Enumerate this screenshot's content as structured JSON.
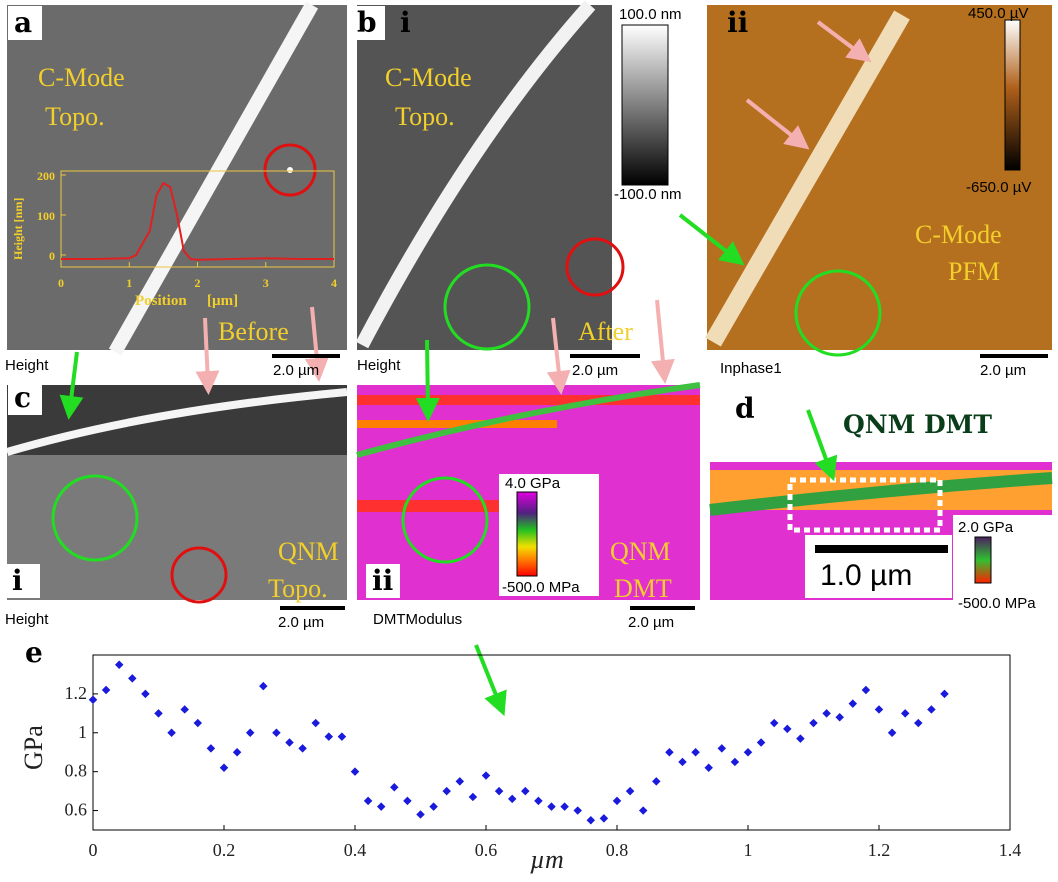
{
  "panels": {
    "a": {
      "letter": "a",
      "title": [
        "C-Mode",
        "Topo."
      ],
      "note": "Before",
      "channel": "Height",
      "scale": "2.0 µm"
    },
    "b": {
      "letter": "b",
      "i": {
        "sub": "i",
        "title": [
          "C-Mode",
          "Topo."
        ],
        "note": "After",
        "channel": "Height",
        "scale": "2.0 µm",
        "colorbar": [
          "100.0 nm",
          "-100.0 nm"
        ]
      },
      "ii": {
        "sub": "ii",
        "title": [
          "C-Mode",
          "PFM"
        ],
        "channel": "Inphase1",
        "scale": "2.0 µm",
        "colorbar": [
          "450.0 µV",
          "-650.0 µV"
        ]
      }
    },
    "c": {
      "letter": "c",
      "i": {
        "sub": "i",
        "title": [
          "QNM",
          "Topo."
        ],
        "channel": "Height",
        "scale": "2.0 µm"
      },
      "ii": {
        "sub": "ii",
        "title": [
          "QNM",
          "DMT"
        ],
        "channel": "DMTModulus",
        "scale": "2.0 µm",
        "colorbar": [
          "4.0 GPa",
          "-500.0 MPa"
        ]
      }
    },
    "d": {
      "letter": "d",
      "title": "QNM DMT",
      "scale": "1.0 µm",
      "colorbar": [
        "2.0 GPa",
        "-500.0 MPa"
      ]
    },
    "e": {
      "letter": "e"
    }
  },
  "chart_data": [
    {
      "type": "line",
      "xlabel": "Position",
      "xunit": "[µm]",
      "ylabel": "Height [nm]",
      "x": [
        0,
        0.5,
        1,
        1.1,
        1.2,
        1.3,
        1.4,
        1.5,
        1.6,
        1.7,
        1.8,
        1.9,
        2,
        2.5,
        3,
        3.5,
        4
      ],
      "series": [
        {
          "color": "#e02020",
          "values": [
            -10,
            -10,
            -8,
            0,
            30,
            60,
            150,
            180,
            170,
            100,
            10,
            -10,
            -12,
            -10,
            -8,
            -10,
            -10
          ]
        }
      ],
      "xlim": [
        0,
        4
      ],
      "xticks": [
        0,
        1,
        2,
        3,
        4
      ],
      "ylim": [
        -30,
        210
      ],
      "yticks": [
        0,
        100,
        200
      ]
    },
    {
      "type": "scatter",
      "xlabel": "µm",
      "ylabel": "GPa",
      "x": [
        0,
        0.02,
        0.04,
        0.06,
        0.08,
        0.1,
        0.12,
        0.14,
        0.16,
        0.18,
        0.2,
        0.22,
        0.24,
        0.26,
        0.28,
        0.3,
        0.32,
        0.34,
        0.36,
        0.38,
        0.4,
        0.42,
        0.44,
        0.46,
        0.48,
        0.5,
        0.52,
        0.54,
        0.56,
        0.58,
        0.6,
        0.62,
        0.64,
        0.66,
        0.68,
        0.7,
        0.72,
        0.74,
        0.76,
        0.78,
        0.8,
        0.82,
        0.84,
        0.86,
        0.88,
        0.9,
        0.92,
        0.94,
        0.96,
        0.98,
        1,
        1.02,
        1.04,
        1.06,
        1.08,
        1.1,
        1.12,
        1.14,
        1.16,
        1.18,
        1.2,
        1.22,
        1.24,
        1.26,
        1.28,
        1.3
      ],
      "series": [
        {
          "color": "#1a1adc",
          "values": [
            1.17,
            1.22,
            1.35,
            1.28,
            1.2,
            1.1,
            1.0,
            1.12,
            1.05,
            0.92,
            0.82,
            0.9,
            1.0,
            1.24,
            1.0,
            0.95,
            0.92,
            1.05,
            0.98,
            0.98,
            0.8,
            0.65,
            0.62,
            0.72,
            0.65,
            0.58,
            0.62,
            0.7,
            0.75,
            0.67,
            0.78,
            0.7,
            0.66,
            0.7,
            0.65,
            0.62,
            0.62,
            0.6,
            0.55,
            0.56,
            0.65,
            0.7,
            0.6,
            0.75,
            0.9,
            0.85,
            0.9,
            0.82,
            0.92,
            0.85,
            0.9,
            0.95,
            1.05,
            1.02,
            0.97,
            1.05,
            1.1,
            1.08,
            1.15,
            1.22,
            1.12,
            1.0,
            1.1,
            1.05,
            1.12,
            1.2
          ]
        }
      ],
      "xlim": [
        0,
        1.4
      ],
      "xticks": [
        0,
        0.2,
        0.4,
        0.6,
        0.8,
        1,
        1.2,
        1.4
      ],
      "ylim": [
        0.5,
        1.4
      ],
      "yticks": [
        0.6,
        0.8,
        1,
        1.2
      ]
    }
  ]
}
